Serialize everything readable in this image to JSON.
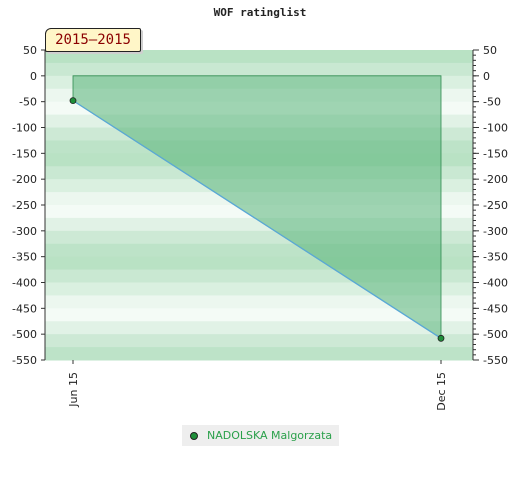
{
  "chart_data": {
    "type": "line",
    "title": "WOF ratinglist",
    "period_label": "2015–2015",
    "x_categories": [
      "Jun 15",
      "Dec 15"
    ],
    "ylim": [
      -550,
      50
    ],
    "y_ticks": [
      50,
      0,
      -50,
      -100,
      -150,
      -200,
      -250,
      -300,
      -350,
      -400,
      -450,
      -500,
      -550
    ],
    "y_axis_sides": "both",
    "series": [
      {
        "name": "NADOLSKA Malgorzata",
        "x": [
          "Jun 15",
          "Dec 15"
        ],
        "values": [
          -48,
          -508
        ]
      }
    ],
    "legend_position": "bottom-center",
    "colors": {
      "line": "#5aa8d6",
      "area": "#5ab57a",
      "band_dark": "#a8dbb6",
      "band_light": "#f3faf5",
      "marker": "#1f8f3a",
      "legend_text": "#2aa04a",
      "period_text": "#8b0000"
    }
  }
}
